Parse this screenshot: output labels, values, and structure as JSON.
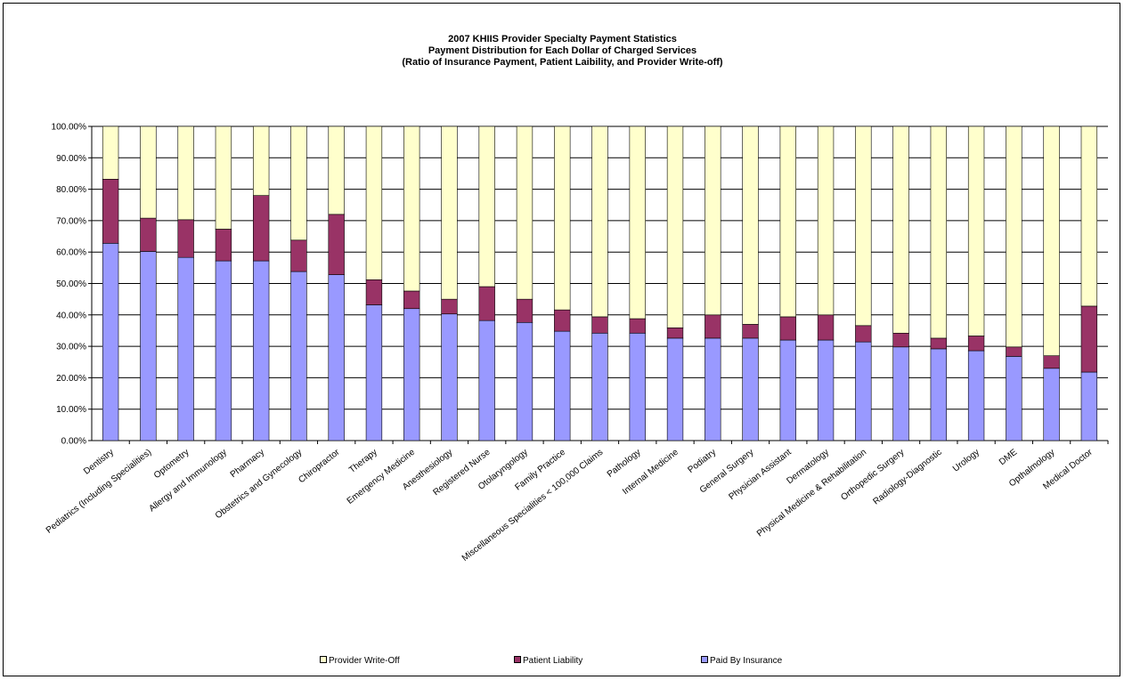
{
  "chart_data": {
    "type": "bar",
    "stacked": true,
    "title": "2007 KHIIS Provider Specialty Payment Statistics",
    "subtitle_lines": [
      "Payment Distribution  for Each Dollar of Charged Services",
      "(Ratio of Insurance  Payment,  Patient Laibility,  and Provider Write-off)"
    ],
    "xlabel": "",
    "ylabel": "",
    "ylim": [
      0,
      100
    ],
    "y_ticks": [
      "0.00%",
      "10.00%",
      "20.00%",
      "30.00%",
      "40.00%",
      "50.00%",
      "60.00%",
      "70.00%",
      "80.00%",
      "90.00%",
      "100.00%"
    ],
    "grid": true,
    "legend_position": "bottom",
    "categories": [
      "Dentistry",
      "Pediatrics (Including Specialities)",
      "Optometry",
      "Allergy and Immunology",
      "Pharmacy",
      "Obstetrics and Gynecology",
      "Chiropractor",
      "Therapy",
      "Emergency Medicine",
      "Anesthesiology",
      "Registered Nurse",
      "Otolaryngology",
      "Family Practice",
      "Miscellaneous Specialities < 100,000 Claims",
      "Pathology",
      "Internal Medicine",
      "Podiatry",
      "General Surgery",
      "Physician Assistant",
      "Dermatology",
      "Physical Medicine & Rehabilitation",
      "Orthopedic Surgery",
      "Radiology-Diagnostic",
      "Urology",
      "DME",
      "Opthalmology",
      "Medical Doctor"
    ],
    "series": [
      {
        "name": "Paid By Insurance",
        "color": "#9999ff",
        "values": [
          62.8,
          60.2,
          58.3,
          57.2,
          57.2,
          53.8,
          52.8,
          43.2,
          42.0,
          40.3,
          38.2,
          37.6,
          34.8,
          34.2,
          34.2,
          32.6,
          32.6,
          32.6,
          32.0,
          32.0,
          31.4,
          29.8,
          29.2,
          28.6,
          26.8,
          23.0,
          21.8
        ]
      },
      {
        "name": "Patient Liability",
        "color": "#993366",
        "values": [
          20.4,
          10.6,
          12.0,
          10.1,
          20.8,
          10.0,
          19.2,
          8.0,
          5.6,
          4.7,
          10.8,
          7.4,
          6.8,
          5.2,
          4.6,
          3.3,
          7.4,
          4.4,
          7.4,
          8.0,
          5.2,
          4.4,
          3.4,
          4.7,
          3.0,
          4.0,
          21.0
        ]
      },
      {
        "name": "Provider Write-Off",
        "color": "#ffffcc",
        "values": [
          16.8,
          29.2,
          29.7,
          32.7,
          22.0,
          36.2,
          28.0,
          48.8,
          52.4,
          55.0,
          51.0,
          55.0,
          58.4,
          60.6,
          61.2,
          64.1,
          60.0,
          63.0,
          60.6,
          60.0,
          63.4,
          65.8,
          67.4,
          66.7,
          70.2,
          73.0,
          57.2
        ]
      }
    ],
    "legend": [
      {
        "label": "Provider Write-Off",
        "color": "#ffffcc"
      },
      {
        "label": "Patient Liability",
        "color": "#993366"
      },
      {
        "label": "Paid By Insurance",
        "color": "#9999ff"
      }
    ]
  }
}
